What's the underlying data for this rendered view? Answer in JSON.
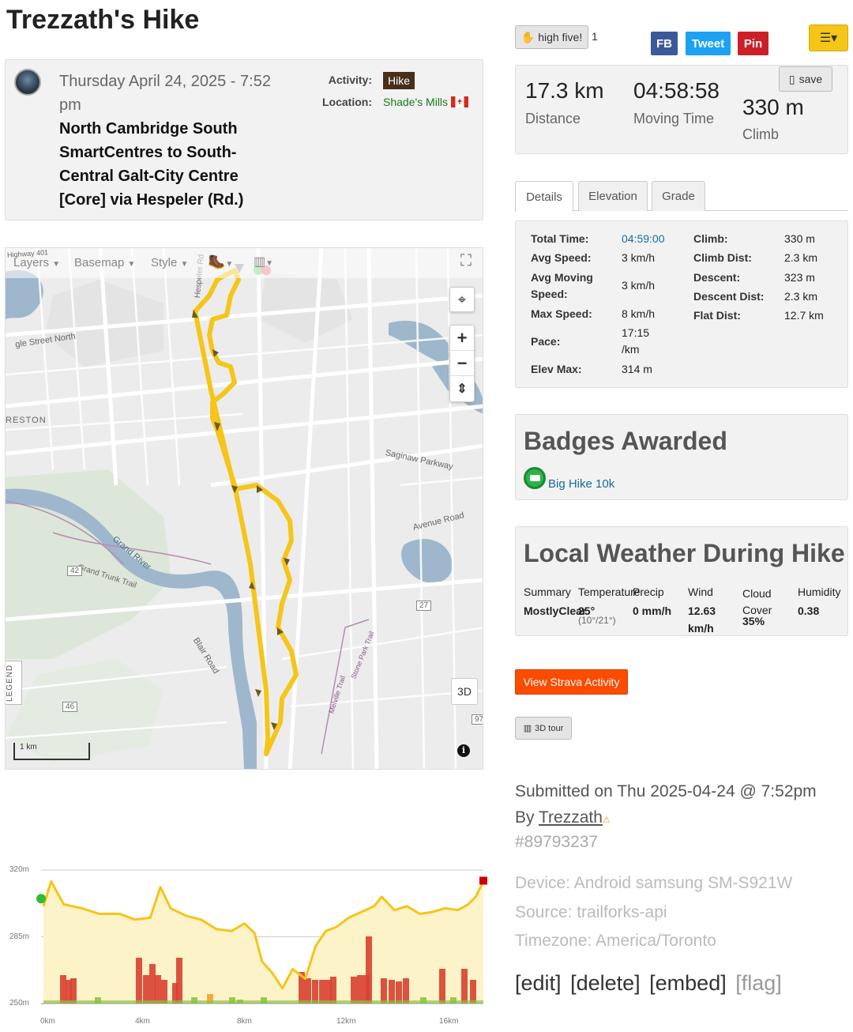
{
  "page": {
    "title": "Trezzath's Hike"
  },
  "info": {
    "date": "Thursday April 24, 2025 - 7:52 pm",
    "route_name": "North Cambridge South SmartCentres to South-Central Galt-City Centre [Core] via Hespeler (Rd.)",
    "activity_label": "Activity:",
    "activity_value": "Hike",
    "location_label": "Location:",
    "location_value": "Shade's Mills"
  },
  "map": {
    "toolbar": {
      "layers": "Layers",
      "basemap": "Basemap",
      "style": "Style"
    },
    "legend_label": "LEGEND",
    "scale_label": "1 km",
    "btn_3d": "3D",
    "labels": {
      "highway401": "Highway 401",
      "hespeler_rd": "Hespeler Rd",
      "eagle_st": "gle Street North",
      "preston": "RESTON",
      "saginaw": "Saginaw Parkway",
      "avenue_rd": "Avenue Road",
      "grand_river": "Grand River",
      "grand_trunk": "Grand Trunk Trail",
      "blair_rd": "Blair Road",
      "route42": "42",
      "route46": "46",
      "route27": "27",
      "route97": "97",
      "melville": "Melville Trail",
      "stpark": "Stone Park Trail"
    }
  },
  "elevation_chart": {
    "y_ticks": [
      "320m",
      "285m",
      "250m"
    ],
    "x_ticks": [
      "0km",
      "4km",
      "8km",
      "12km",
      "16km"
    ]
  },
  "chart_data": {
    "type": "area",
    "title": "",
    "xlabel": "",
    "ylabel": "",
    "x_unit": "km",
    "y_unit": "m",
    "xlim": [
      0,
      17.3
    ],
    "ylim": [
      250,
      320
    ],
    "x": [
      0,
      0.3,
      0.8,
      1.5,
      2.2,
      3.0,
      3.6,
      4.2,
      4.6,
      5.0,
      5.6,
      6.2,
      6.8,
      7.4,
      7.9,
      8.3,
      8.6,
      9.0,
      9.4,
      9.8,
      10.3,
      10.7,
      11.1,
      11.5,
      12.0,
      12.5,
      13.0,
      13.3,
      13.8,
      14.3,
      14.8,
      15.3,
      15.8,
      16.3,
      16.7,
      17.0,
      17.3
    ],
    "series": [
      {
        "values": [
          301,
          314,
          302,
          300,
          297,
          297,
          294,
          295,
          311,
          300,
          296,
          294,
          289,
          288,
          292,
          287,
          272,
          266,
          258,
          268,
          263,
          280,
          288,
          290,
          295,
          298,
          301,
          306,
          299,
          301,
          297,
          298,
          300,
          299,
          302,
          306,
          314
        ]
      }
    ],
    "start_marker_color": "#33bb33",
    "end_marker_color": "#cc0000",
    "line_color": "#f5c518",
    "fill_color": "#fdf3c8"
  },
  "right": {
    "high_five_label": "high five!",
    "high_five_count": "1",
    "fb_label": "FB",
    "tweet_label": "Tweet",
    "pin_label": "Pin",
    "save_label": "save",
    "stats": {
      "distance_value": "17.3 km",
      "distance_label": "Distance",
      "moving_value": "04:58:58",
      "moving_label": "Moving Time",
      "climb_value": "330 m",
      "climb_label": "Climb"
    },
    "tabs": [
      "Details",
      "Elevation",
      "Grade"
    ],
    "details": {
      "total_time_label": "Total Time:",
      "total_time": "04:59:00",
      "avg_speed_label": "Avg Speed:",
      "avg_speed": "3 km/h",
      "avg_moving_label": "Avg Moving Speed:",
      "avg_moving": "3 km/h",
      "max_speed_label": "Max Speed:",
      "max_speed": "8 km/h",
      "pace_label": "Pace:",
      "pace": "17:15 /km",
      "elev_max_label": "Elev Max:",
      "elev_max": "314 m",
      "climb_label": "Climb:",
      "climb": "330 m",
      "climb_dist_label": "Climb Dist:",
      "climb_dist": "2.3 km",
      "descent_label": "Descent:",
      "descent": "323 m",
      "descent_dist_label": "Descent Dist:",
      "descent_dist": "2.3 km",
      "flat_dist_label": "Flat Dist:",
      "flat_dist": "12.7 km"
    },
    "badges_title": "Badges Awarded",
    "badge_name": "Big Hike 10k",
    "weather_title": "Local Weather During Hike",
    "weather": {
      "summary_label": "Summary",
      "summary": "MostlyClear",
      "temp_label": "Temperature",
      "temp": "25°",
      "temp_range": "(10°/21°)",
      "precip_label": "Precip",
      "precip": "0 mm/h",
      "wind_label": "Wind",
      "wind": "12.63 km/h",
      "cloud_label": "Cloud Cover",
      "cloud": "35%",
      "humidity_label": "Humidity",
      "humidity": "0.38"
    },
    "strava_label": "View Strava Activity",
    "tour_label": "3D tour",
    "submitted": "Submitted on Thu 2025-04-24 @ 7:52pm",
    "by_prefix": "By ",
    "by_user": "Trezzath",
    "id": "#89793237",
    "device": "Device: Android samsung SM-S921W",
    "source": "Source: trailforks-api",
    "timezone": "Timezone: America/Toronto",
    "edit": "[edit]",
    "delete": "[delete]",
    "embed": "[embed]",
    "flag": "[flag]"
  },
  "colors": {
    "accent_yellow": "#f5c518",
    "strava_orange": "#fc4c02",
    "fb_blue": "#3b5998",
    "tweet_blue": "#1da1f2",
    "pin_red": "#cb2027"
  }
}
